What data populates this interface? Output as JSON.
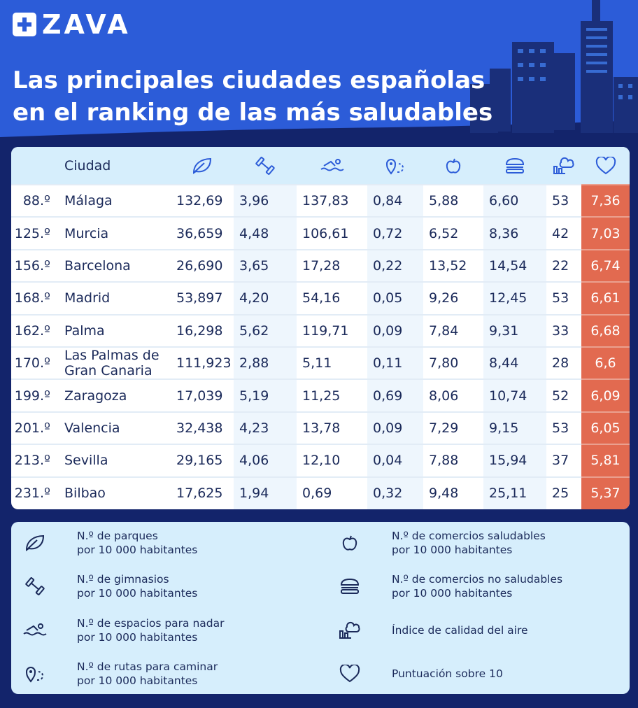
{
  "brand": {
    "name": "ZAVA",
    "logo_icon": "cross-icon"
  },
  "title_line1": "Las principales ciudades españolas",
  "title_line2": "en el ranking de las más saludables",
  "table": {
    "header_city": "Ciudad",
    "columns_icons": [
      "leaf-icon",
      "dumbbell-icon",
      "swimmer-icon",
      "route-icon",
      "apple-icon",
      "burger-icon",
      "factory-icon",
      "heart-icon"
    ],
    "rows": [
      {
        "rank": "88.º",
        "city": "Málaga",
        "parks": "132,69",
        "gyms": "3,96",
        "swim": "137,83",
        "routes": "0,84",
        "healthy": "5,88",
        "unhealthy": "6,60",
        "air": "53",
        "score": "7,36"
      },
      {
        "rank": "125.º",
        "city": "Murcia",
        "parks": "36,659",
        "gyms": "4,48",
        "swim": "106,61",
        "routes": "0,72",
        "healthy": "6,52",
        "unhealthy": "8,36",
        "air": "42",
        "score": "7,03"
      },
      {
        "rank": "156.º",
        "city": "Barcelona",
        "parks": "26,690",
        "gyms": "3,65",
        "swim": "17,28",
        "routes": "0,22",
        "healthy": "13,52",
        "unhealthy": "14,54",
        "air": "22",
        "score": "6,74"
      },
      {
        "rank": "168.º",
        "city": "Madrid",
        "parks": "53,897",
        "gyms": "4,20",
        "swim": "54,16",
        "routes": "0,05",
        "healthy": "9,26",
        "unhealthy": "12,45",
        "air": "53",
        "score": "6,61"
      },
      {
        "rank": "162.º",
        "city": "Palma",
        "parks": "16,298",
        "gyms": "5,62",
        "swim": "119,71",
        "routes": "0,09",
        "healthy": "7,84",
        "unhealthy": "9,31",
        "air": "33",
        "score": "6,68"
      },
      {
        "rank": "170.º",
        "city": "Las Palmas de Gran Canaria",
        "parks": "111,923",
        "gyms": "2,88",
        "swim": "5,11",
        "routes": "0,11",
        "healthy": "7,80",
        "unhealthy": "8,44",
        "air": "28",
        "score": "6,6"
      },
      {
        "rank": "199.º",
        "city": "Zaragoza",
        "parks": "17,039",
        "gyms": "5,19",
        "swim": "11,25",
        "routes": "0,69",
        "healthy": "8,06",
        "unhealthy": "10,74",
        "air": "52",
        "score": "6,09"
      },
      {
        "rank": "201.º",
        "city": "Valencia",
        "parks": "32,438",
        "gyms": "4,23",
        "swim": "13,78",
        "routes": "0,09",
        "healthy": "7,29",
        "unhealthy": "9,15",
        "air": "53",
        "score": "6,05"
      },
      {
        "rank": "213.º",
        "city": "Sevilla",
        "parks": "29,165",
        "gyms": "4,06",
        "swim": "12,10",
        "routes": "0,04",
        "healthy": "7,88",
        "unhealthy": "15,94",
        "air": "37",
        "score": "5,81"
      },
      {
        "rank": "231.º",
        "city": "Bilbao",
        "parks": "17,625",
        "gyms": "1,94",
        "swim": "0,69",
        "routes": "0,32",
        "healthy": "9,48",
        "unhealthy": "25,11",
        "air": "25",
        "score": "5,37"
      }
    ]
  },
  "legend": {
    "parks": {
      "line1": "N.º de parques",
      "line2": "por 10 000 habitantes"
    },
    "gyms": {
      "line1": "N.º de gimnasios",
      "line2": "por 10 000 habitantes"
    },
    "swim": {
      "line1": "N.º de espacios para nadar",
      "line2": "por 10 000 habitantes"
    },
    "routes": {
      "line1": "N.º de rutas para caminar",
      "line2": "por 10 000 habitantes"
    },
    "healthy": {
      "line1": "N.º de comercios saludables",
      "line2": "por 10 000 habitantes"
    },
    "unhealthy": {
      "line1": "N.º de comercios no saludables",
      "line2": "por 10 000 habitantes"
    },
    "air": {
      "line1": "Índice de calidad del aire"
    },
    "score": {
      "line1": "Puntuación sobre 10"
    }
  },
  "colors": {
    "header_blue": "#2c5cd8",
    "navy": "#13246b",
    "score": "#e26a50",
    "light": "#d6eefc"
  }
}
